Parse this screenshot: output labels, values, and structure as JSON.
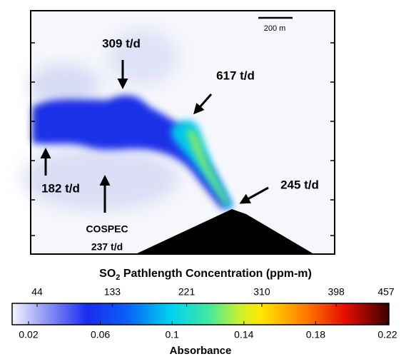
{
  "annotations": {
    "flux_top": "309 t/d",
    "flux_mid": "617 t/d",
    "flux_vent": "245 t/d",
    "flux_left": "182 t/d",
    "cospec_label": "COSPEC",
    "cospec_flux": "237 t/d"
  },
  "scale_bar": "200 m",
  "colorbar": {
    "title": {
      "prefix": "SO",
      "subscript": "2",
      "suffix": " Pathlength Concentration (ppm-m)"
    },
    "top_ticks": [
      44,
      133,
      221,
      310,
      398,
      457
    ],
    "bottom_ticks": [
      0.02,
      0.06,
      0.1,
      0.14,
      0.18,
      0.22
    ],
    "bottom_label": "Absorbance"
  }
}
